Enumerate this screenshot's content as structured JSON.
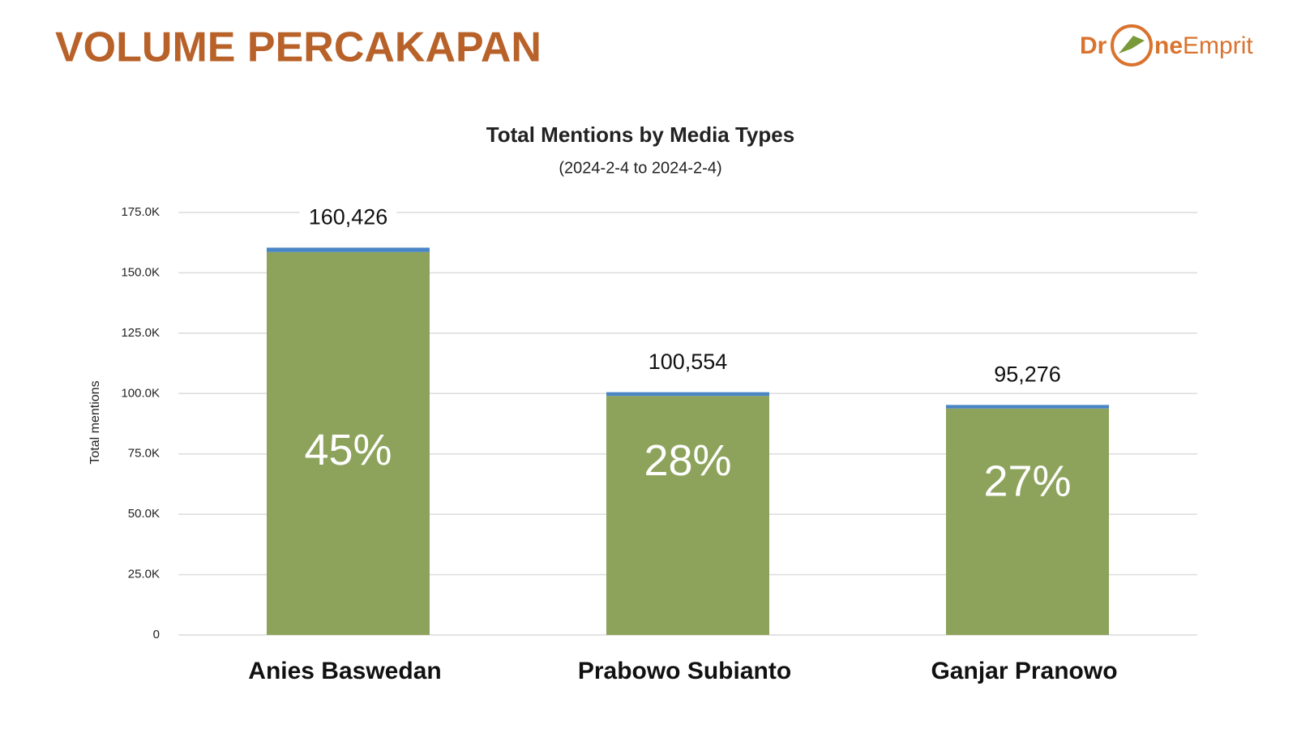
{
  "header": {
    "title": "VOLUME PERCAKAPAN",
    "logo": {
      "start": "Dr",
      "bold": "ne",
      "end": "Emprit"
    }
  },
  "chart_data": {
    "type": "bar",
    "stacked": true,
    "title": "Total Mentions by Media Types",
    "subtitle": "(2024-2-4 to 2024-2-4)",
    "ylabel": "Total mentions",
    "categories": [
      "Anies Baswedan",
      "Prabowo Subianto",
      "Ganjar Pranowo"
    ],
    "series": [
      {
        "color": "#8da35b",
        "values": [
          158600,
          99000,
          93800
        ]
      },
      {
        "color": "#4a86c5",
        "values": [
          1826,
          1554,
          1476
        ]
      }
    ],
    "totals": [
      160426,
      100554,
      95276
    ],
    "total_labels": [
      "160,426",
      "100,554",
      "95,276"
    ],
    "shares": [
      45,
      28,
      27
    ],
    "share_labels": [
      "45%",
      "28%",
      "27%"
    ],
    "ylim": [
      0,
      175000
    ],
    "yticks": [
      0,
      {
        "value": 25000,
        "label": "25.0K"
      },
      {
        "value": 50000,
        "label": "50.0K"
      },
      {
        "value": 75000,
        "label": "75.0K"
      },
      {
        "value": 100000,
        "label": "100.0K"
      },
      {
        "value": 125000,
        "label": "125.0K"
      },
      {
        "value": 150000,
        "label": "150.0K"
      },
      {
        "value": 175000,
        "label": "175.0K"
      }
    ],
    "grid": true
  }
}
